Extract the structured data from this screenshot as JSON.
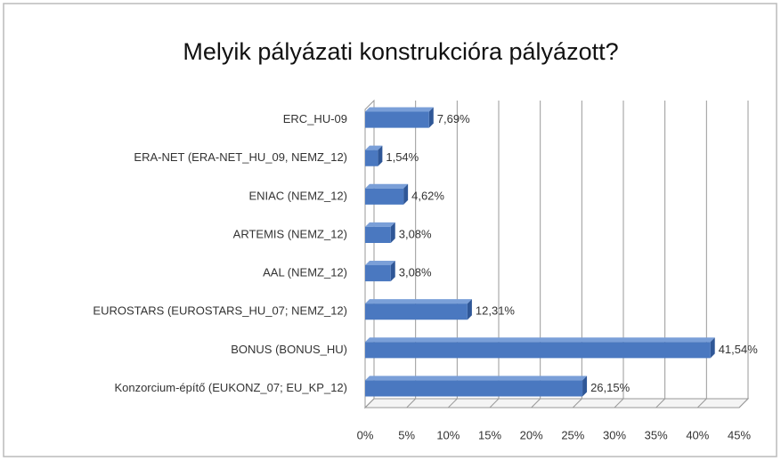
{
  "chart_data": {
    "type": "bar",
    "orientation": "horizontal",
    "title": "Melyik pályázati konstrukcióra pályázott?",
    "categories": [
      "ERC_HU-09",
      "ERA-NET (ERA-NET_HU_09, NEMZ_12)",
      "ENIAC (NEMZ_12)",
      "ARTEMIS (NEMZ_12)",
      "AAL (NEMZ_12)",
      "EUROSTARS (EUROSTARS_HU_07; NEMZ_12)",
      "BONUS (BONUS_HU)",
      "Konzorcium-építő (EUKONZ_07; EU_KP_12)"
    ],
    "values": [
      7.69,
      1.54,
      4.62,
      3.08,
      3.08,
      12.31,
      41.54,
      26.15
    ],
    "value_labels": [
      "7,69%",
      "1,54%",
      "4,62%",
      "3,08%",
      "3,08%",
      "12,31%",
      "41,54%",
      "26,15%"
    ],
    "color": "#4a78c0",
    "xlim": [
      0,
      45
    ],
    "xticks": [
      {
        "value": 0,
        "label": "0%"
      },
      {
        "value": 5,
        "label": "5%"
      },
      {
        "value": 10,
        "label": "10%"
      },
      {
        "value": 15,
        "label": "15%"
      },
      {
        "value": 20,
        "label": "20%"
      },
      {
        "value": 25,
        "label": "25%"
      },
      {
        "value": 30,
        "label": "30%"
      },
      {
        "value": 35,
        "label": "35%"
      },
      {
        "value": 40,
        "label": "40%"
      },
      {
        "value": 45,
        "label": "45%"
      }
    ],
    "grid": true
  }
}
